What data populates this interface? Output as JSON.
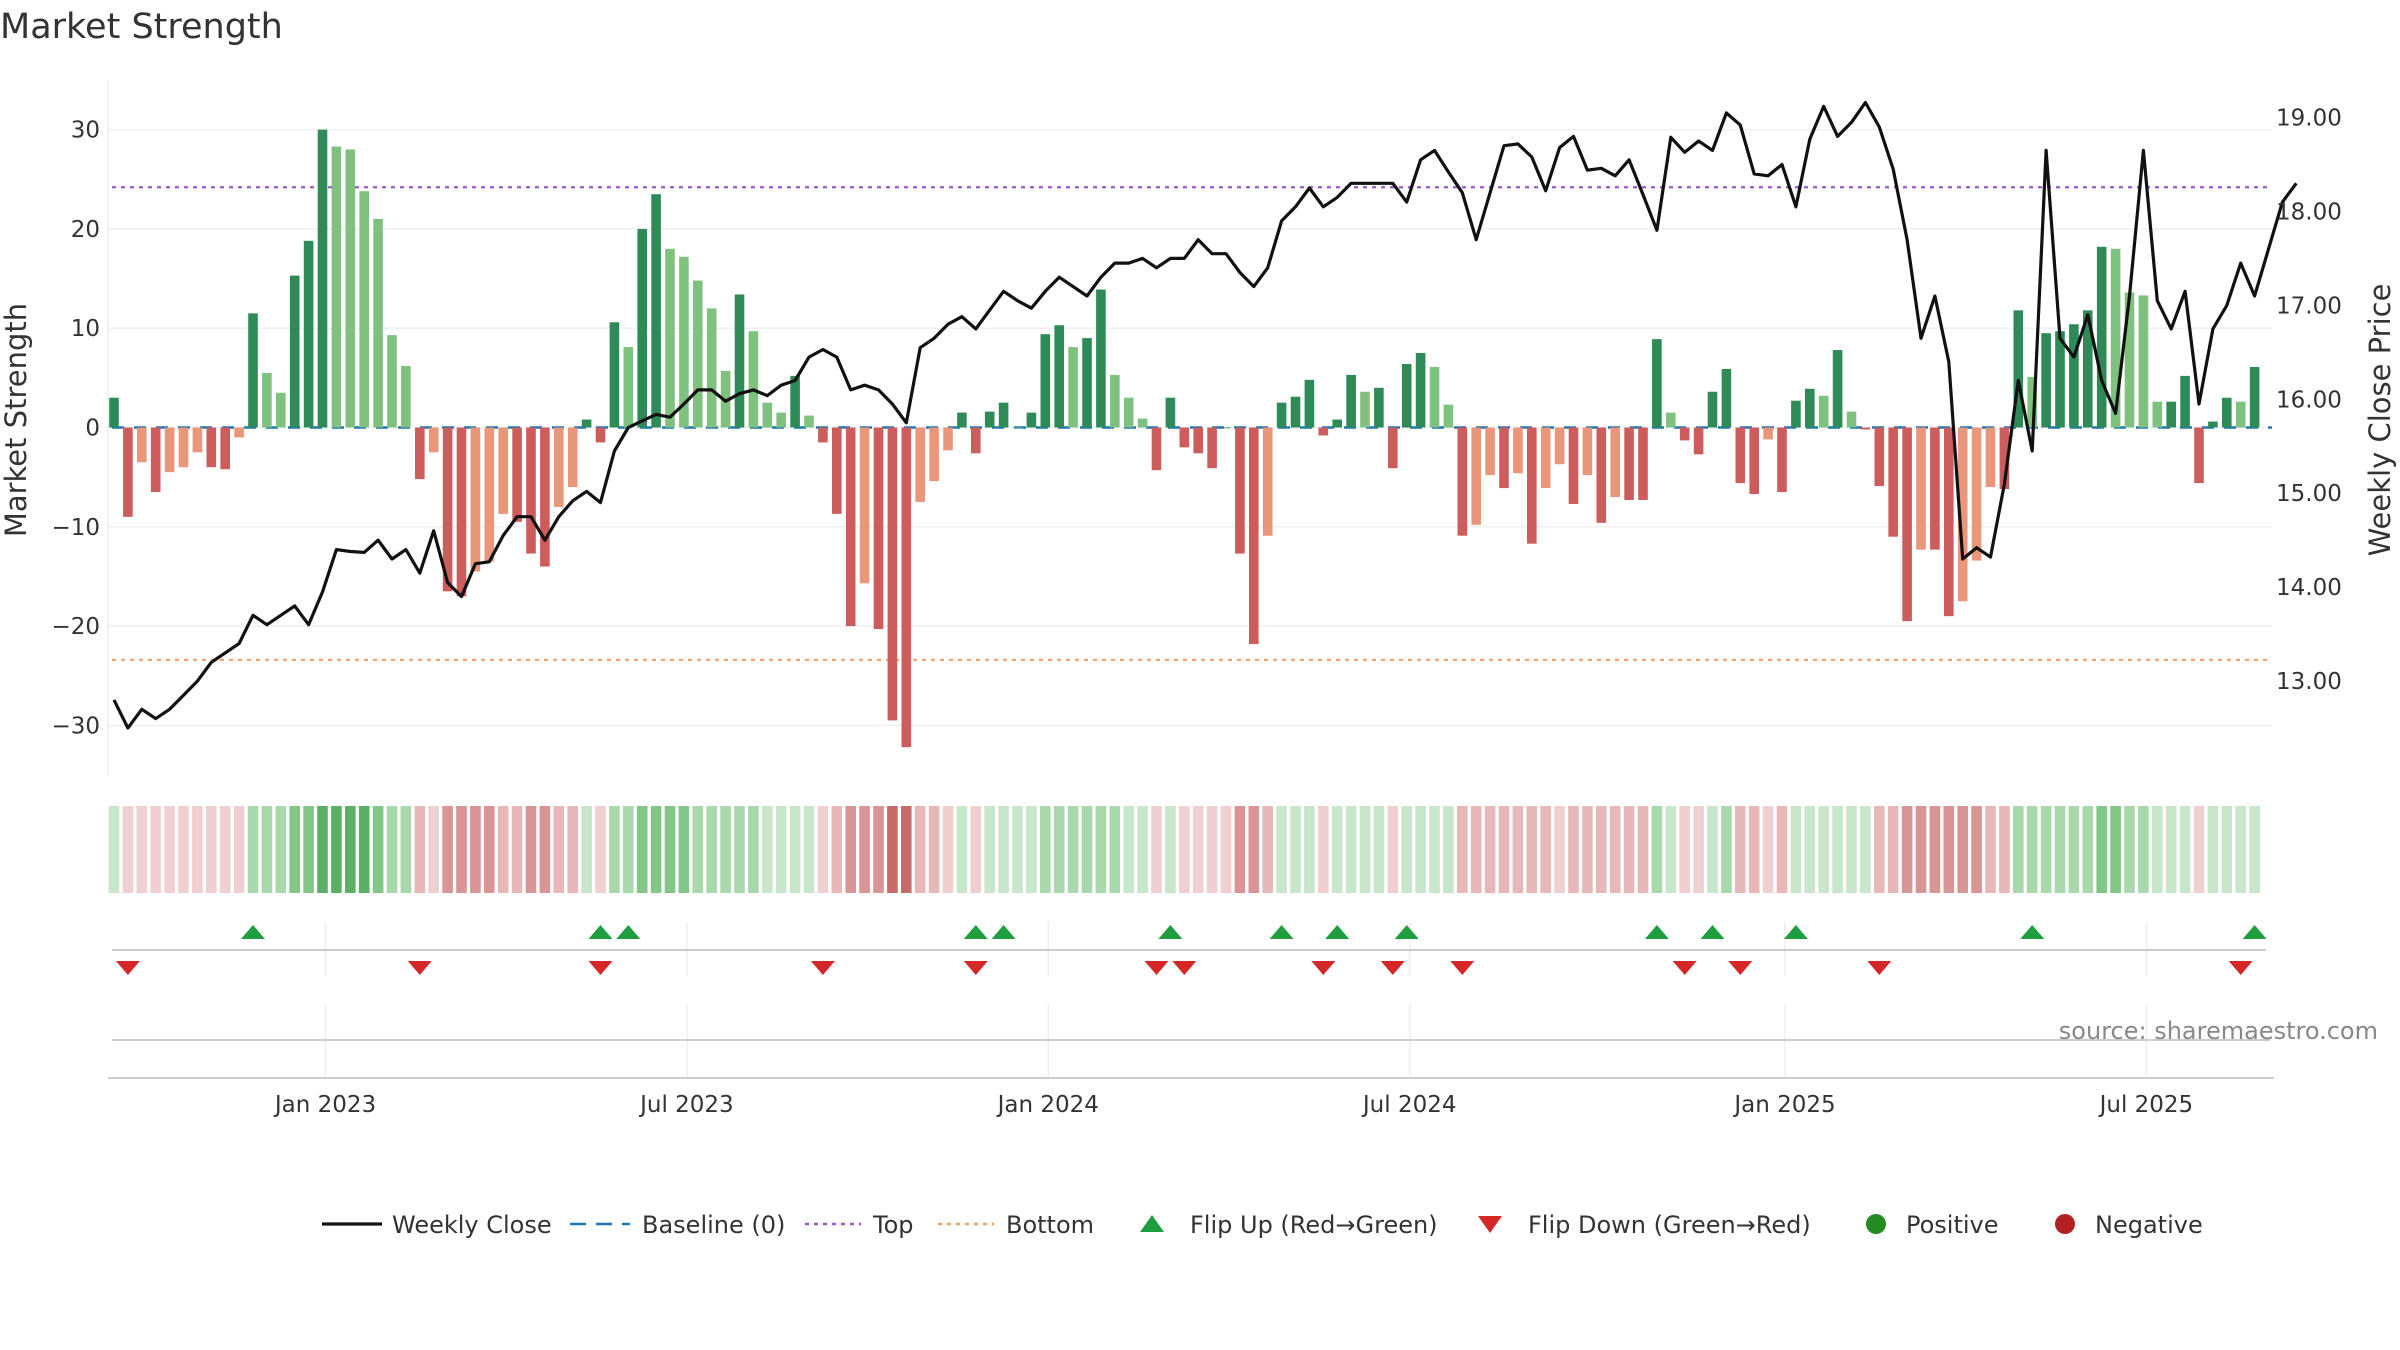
{
  "chart_data": {
    "type": "bar",
    "title": "Market Strength",
    "left_axis": {
      "label": "Market Strength",
      "range": [
        -35.0,
        35.0
      ],
      "ticks": [
        30,
        20,
        10,
        0,
        -10,
        -20,
        -30
      ]
    },
    "right_axis": {
      "label": "Weekly Close Price",
      "range": [
        12.0,
        19.4
      ],
      "ticks": [
        {
          "v": 19,
          "label": "19.00"
        },
        {
          "v": 18,
          "label": "18.00"
        },
        {
          "v": 17,
          "label": "17.00"
        },
        {
          "v": 16,
          "label": "16.00"
        },
        {
          "v": 15,
          "label": "15.00"
        },
        {
          "v": 14,
          "label": "14.00"
        },
        {
          "v": 13,
          "label": "13.00"
        }
      ]
    },
    "x_ticks": [
      {
        "index": 15,
        "label": "Jan 2023"
      },
      {
        "index": 41,
        "label": "Jul 2023"
      },
      {
        "index": 67,
        "label": "Jan 2024"
      },
      {
        "index": 93,
        "label": "Jul 2024"
      },
      {
        "index": 120,
        "label": "Jan 2025"
      },
      {
        "index": 146,
        "label": "Jul 2025"
      }
    ],
    "thresholds": {
      "top": 24.2,
      "bottom": -23.4,
      "baseline": 0
    },
    "strength": [
      3,
      -9,
      -3.5,
      -6.5,
      -4.5,
      -4,
      -2.5,
      -4,
      -4.2,
      -1,
      11.5,
      5.5,
      3.5,
      15.3,
      18.8,
      30,
      28.3,
      28,
      23.8,
      21,
      9.3,
      6.2,
      -5.2,
      -2.5,
      -16.5,
      -17,
      -14.5,
      -13.5,
      -8.7,
      -9.5,
      -12.7,
      -14,
      -8,
      -6,
      0.8,
      -1.5,
      10.6,
      8.1,
      20,
      23.5,
      18,
      17.2,
      14.8,
      12,
      5.7,
      13.4,
      9.7,
      2.5,
      1.5,
      5.2,
      1.2,
      -1.5,
      -8.7,
      -20,
      -15.7,
      -20.3,
      -29.5,
      -32.2,
      -7.5,
      -5.4,
      -2.3,
      1.5,
      -2.6,
      1.6,
      2.5,
      0,
      1.5,
      9.4,
      10.3,
      8.1,
      9,
      13.9,
      5.3,
      3,
      0.9,
      -4.3,
      3,
      -2,
      -2.6,
      -4.1,
      0,
      -12.7,
      -21.8,
      -10.9,
      2.5,
      3.1,
      4.8,
      -0.8,
      0.8,
      5.3,
      3.6,
      4,
      -4.1,
      6.4,
      7.5,
      6.1,
      2.3,
      -10.9,
      -9.8,
      -4.8,
      -6.1,
      -4.6,
      -11.7,
      -6.1,
      -3.7,
      -7.7,
      -4.8,
      -9.6,
      -7,
      -7.3,
      -7.3,
      8.9,
      1.5,
      -1.3,
      -2.7,
      3.6,
      5.9,
      -5.6,
      -6.7,
      -1.2,
      -6.5,
      2.7,
      3.9,
      3.2,
      7.8,
      1.6,
      -0.2,
      -5.9,
      -11,
      -19.5,
      -12.3,
      -12.3,
      -19,
      -17.5,
      -13.4,
      -6,
      -6.2,
      11.8,
      5.1,
      9.5,
      9.7,
      10.4,
      11.8,
      18.2,
      18,
      13.6,
      13.3,
      2.6,
      2.6,
      5.2,
      -5.6,
      0.6,
      3,
      2.6,
      6.1
    ],
    "weekly_close": [
      12.8,
      12.5,
      12.7,
      12.6,
      12.7,
      12.85,
      13,
      13.2,
      13.3,
      13.4,
      13.7,
      13.6,
      13.7,
      13.8,
      13.6,
      13.95,
      14.4,
      14.38,
      14.37,
      14.5,
      14.3,
      14.4,
      14.15,
      14.6,
      14.05,
      13.9,
      14.25,
      14.27,
      14.55,
      14.75,
      14.75,
      14.5,
      14.75,
      14.92,
      15.02,
      14.9,
      15.45,
      15.7,
      15.77,
      15.84,
      15.81,
      15.95,
      16.1,
      16.1,
      15.98,
      16.06,
      16.1,
      16.04,
      16.15,
      16.2,
      16.45,
      16.53,
      16.45,
      16.1,
      16.15,
      16.1,
      15.95,
      15.75,
      16.55,
      16.65,
      16.8,
      16.88,
      16.75,
      16.95,
      17.15,
      17.05,
      16.97,
      17.15,
      17.3,
      17.2,
      17.1,
      17.3,
      17.45,
      17.45,
      17.5,
      17.4,
      17.5,
      17.5,
      17.7,
      17.55,
      17.55,
      17.35,
      17.2,
      17.4,
      17.9,
      18.05,
      18.25,
      18.05,
      18.15,
      18.3,
      18.3,
      18.3,
      18.3,
      18.1,
      18.55,
      18.65,
      18.42,
      18.2,
      17.7,
      18.2,
      18.7,
      18.72,
      18.58,
      18.22,
      18.68,
      18.8,
      18.44,
      18.46,
      18.38,
      18.55,
      18.18,
      17.8,
      18.79,
      18.63,
      18.75,
      18.65,
      19.05,
      18.92,
      18.4,
      18.38,
      18.5,
      18.05,
      18.77,
      19.12,
      18.8,
      18.95,
      19.16,
      18.9,
      18.45,
      17.7,
      16.65,
      17.1,
      16.4,
      14.3,
      14.42,
      14.32,
      15.1,
      16.2,
      15.45,
      18.65,
      16.65,
      16.45,
      16.9,
      16.2,
      15.85,
      17.1,
      18.65,
      17.05,
      16.75,
      17.15,
      15.95,
      16.75,
      17,
      17.45,
      17.1,
      17.6,
      18.1,
      18.3
    ],
    "regime_colors": [
      "#c8e6c9",
      "#efcfcf",
      "#efcfcf",
      "#efcfcf",
      "#efcfcf",
      "#efcfcf",
      "#efcfcf",
      "#efcfcf",
      "#efcfcf",
      "#efcfcf",
      "#a8d8ab",
      "#a8d8ab",
      "#a8d8ab",
      "#83c788",
      "#83c788",
      "#5bb065",
      "#5bb065",
      "#5bb065",
      "#5bb065",
      "#83c788",
      "#a8d8ab",
      "#a8d8ab",
      "#e8b8b8",
      "#efcfcf",
      "#d99595",
      "#d99595",
      "#d99595",
      "#d99595",
      "#e8b8b8",
      "#e8b8b8",
      "#d99595",
      "#d99595",
      "#e8b8b8",
      "#e8b8b8",
      "#c8e6c9",
      "#efcfcf",
      "#a8d8ab",
      "#a8d8ab",
      "#83c788",
      "#83c788",
      "#83c788",
      "#83c788",
      "#a8d8ab",
      "#a8d8ab",
      "#a8d8ab",
      "#a8d8ab",
      "#a8d8ab",
      "#c8e6c9",
      "#c8e6c9",
      "#c8e6c9",
      "#c8e6c9",
      "#efcfcf",
      "#e8b8b8",
      "#d99595",
      "#d99595",
      "#d99595",
      "#c96a6a",
      "#c96a6a",
      "#e8b8b8",
      "#e8b8b8",
      "#efcfcf",
      "#c8e6c9",
      "#efcfcf",
      "#c8e6c9",
      "#c8e6c9",
      "#c8e6c9",
      "#c8e6c9",
      "#a8d8ab",
      "#a8d8ab",
      "#a8d8ab",
      "#a8d8ab",
      "#a8d8ab",
      "#a8d8ab",
      "#c8e6c9",
      "#c8e6c9",
      "#efcfcf",
      "#c8e6c9",
      "#efcfcf",
      "#efcfcf",
      "#efcfcf",
      "#efcfcf",
      "#d99595",
      "#d99595",
      "#e8b8b8",
      "#c8e6c9",
      "#c8e6c9",
      "#c8e6c9",
      "#efcfcf",
      "#c8e6c9",
      "#c8e6c9",
      "#c8e6c9",
      "#c8e6c9",
      "#efcfcf",
      "#c8e6c9",
      "#c8e6c9",
      "#c8e6c9",
      "#c8e6c9",
      "#e8b8b8",
      "#e8b8b8",
      "#e8b8b8",
      "#e8b8b8",
      "#e8b8b8",
      "#e8b8b8",
      "#e8b8b8",
      "#efcfcf",
      "#e8b8b8",
      "#e8b8b8",
      "#e8b8b8",
      "#e8b8b8",
      "#e8b8b8",
      "#e8b8b8",
      "#a8d8ab",
      "#c8e6c9",
      "#efcfcf",
      "#efcfcf",
      "#c8e6c9",
      "#a8d8ab",
      "#e8b8b8",
      "#e8b8b8",
      "#efcfcf",
      "#e8b8b8",
      "#c8e6c9",
      "#c8e6c9",
      "#c8e6c9",
      "#c8e6c9",
      "#c8e6c9",
      "#c8e6c9",
      "#e8b8b8",
      "#e8b8b8",
      "#d99595",
      "#d99595",
      "#d99595",
      "#d99595",
      "#d99595",
      "#d99595",
      "#e8b8b8",
      "#e8b8b8",
      "#a8d8ab",
      "#a8d8ab",
      "#a8d8ab",
      "#a8d8ab",
      "#a8d8ab",
      "#a8d8ab",
      "#83c788",
      "#83c788",
      "#a8d8ab",
      "#a8d8ab",
      "#c8e6c9",
      "#c8e6c9",
      "#c8e6c9",
      "#efcfcf",
      "#c8e6c9",
      "#c8e6c9",
      "#c8e6c9",
      "#c8e6c9"
    ],
    "flip_up_indices": [
      10,
      35,
      37,
      62,
      64,
      76,
      84,
      88,
      93,
      111,
      115,
      121,
      138,
      154
    ],
    "flip_down_indices": [
      1,
      22,
      35,
      51,
      62,
      75,
      77,
      87,
      92,
      97,
      113,
      117,
      127,
      153
    ],
    "colors": {
      "strong_green": "#2e8b57",
      "light_green": "#7fc17f",
      "strong_red": "#cd5c5c",
      "light_red": "#e9967a",
      "weekly_close": "#111111",
      "baseline": "#1f77b4",
      "top": "#9b59d0",
      "bottom": "#f0a060",
      "flip_up": "#1e9e3e",
      "flip_down": "#d62728",
      "positive": "#228b22",
      "negative": "#b22222"
    },
    "legend": [
      {
        "key": "weekly_close",
        "label": "Weekly Close",
        "symbol": "line-solid"
      },
      {
        "key": "baseline",
        "label": "Baseline (0)",
        "symbol": "line-dashed"
      },
      {
        "key": "top",
        "label": "Top",
        "symbol": "line-dotted"
      },
      {
        "key": "bottom",
        "label": "Bottom",
        "symbol": "line-dotted"
      },
      {
        "key": "flip_up",
        "label": "Flip Up (Red→Green)",
        "symbol": "triangle-up"
      },
      {
        "key": "flip_down",
        "label": "Flip Down (Green→Red)",
        "symbol": "triangle-down"
      },
      {
        "key": "positive",
        "label": "Positive",
        "symbol": "circle"
      },
      {
        "key": "negative",
        "label": "Negative",
        "symbol": "circle"
      }
    ],
    "source": "source: sharemaestro.com"
  }
}
